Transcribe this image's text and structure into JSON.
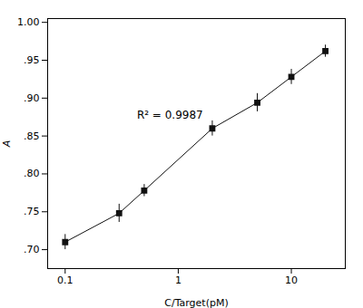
{
  "chart_data": {
    "type": "line",
    "x": [
      0.1,
      0.3,
      0.5,
      2.0,
      5.0,
      10.0,
      20.0
    ],
    "values": [
      0.71,
      0.748,
      0.778,
      0.86,
      0.894,
      0.928,
      0.962
    ],
    "yerr": [
      0.01,
      0.012,
      0.008,
      0.01,
      0.012,
      0.01,
      0.008
    ],
    "color": "#111111",
    "marker": "square",
    "xlabel": "C/Target(pM)",
    "ylabel": "A",
    "annotation": "R² = 0.9987",
    "log": "x",
    "xlim": [
      0.07,
      30
    ],
    "ylim": [
      0.675,
      1.005
    ],
    "xticks": [
      0.1,
      1,
      10
    ],
    "yticks": [
      {
        "value": 0.7,
        "label": ".70"
      },
      {
        "value": 0.75,
        "label": ".75"
      },
      {
        "value": 0.8,
        "label": ".80"
      },
      {
        "value": 0.85,
        "label": ".85"
      },
      {
        "value": 0.9,
        "label": ".90"
      },
      {
        "value": 0.95,
        "label": ".95"
      },
      {
        "value": 1.0,
        "label": "1.00"
      }
    ],
    "grid": false
  }
}
